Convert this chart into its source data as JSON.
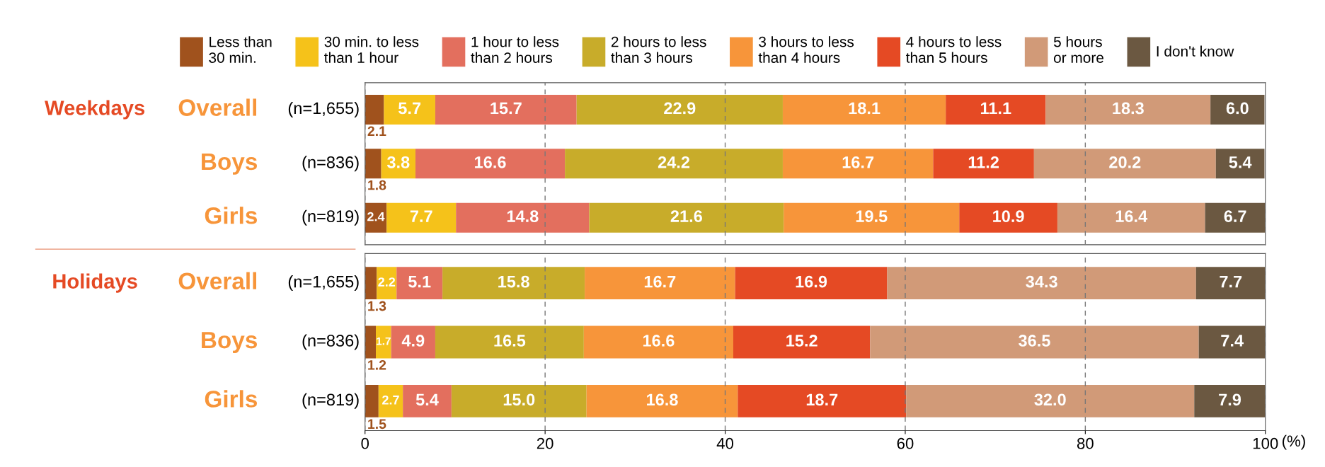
{
  "chart_data": [
    {
      "type": "bar",
      "orientation": "horizontal",
      "stacked": true,
      "categories": [
        "Overall (n=1,655)",
        "Boys (n=836)",
        "Girls (n=819)"
      ],
      "annotations": [
        "Weekdays"
      ],
      "xlim": [
        0,
        100
      ],
      "xticks": [
        0,
        20,
        40,
        60,
        80,
        100
      ],
      "grid": "x",
      "legend": "top",
      "tick_labels": false,
      "series": [
        {
          "name": "Less than\n30 min.",
          "color": "#a0521d",
          "values": [
            2.1,
            1.8,
            2.4
          ],
          "value_labels": [
            "2.1",
            "1.8",
            "2.4"
          ]
        },
        {
          "name": "30 min. to less\nthan 1 hour",
          "color": "#f5c21a",
          "values": [
            5.7,
            3.8,
            7.7
          ],
          "value_labels": [
            "5.7",
            "3.8",
            "7.7"
          ]
        },
        {
          "name": "1 hour to less\nthan 2 hours",
          "color": "#e36f5e",
          "values": [
            15.7,
            16.6,
            14.8
          ],
          "value_labels": [
            "15.7",
            "16.6",
            "14.8"
          ]
        },
        {
          "name": "2 hours to less\nthan 3 hours",
          "color": "#c8ac2a",
          "values": [
            22.9,
            24.2,
            21.6
          ],
          "value_labels": [
            "22.9",
            "24.2",
            "21.6"
          ]
        },
        {
          "name": "3 hours to less\nthan 4 hours",
          "color": "#f7953a",
          "values": [
            18.1,
            16.7,
            19.5
          ],
          "value_labels": [
            "18.1",
            "16.7",
            "19.5"
          ]
        },
        {
          "name": "4 hours to less\nthan 5 hours",
          "color": "#e54a24",
          "values": [
            11.1,
            11.2,
            10.9
          ],
          "value_labels": [
            "11.1",
            "11.2",
            "10.9"
          ]
        },
        {
          "name": "5 hours\nor more",
          "color": "#d19a78",
          "values": [
            18.3,
            20.2,
            16.4
          ],
          "value_labels": [
            "18.3",
            "20.2",
            "16.4"
          ]
        },
        {
          "name": "I don't know",
          "color": "#6b5841",
          "values": [
            6.0,
            5.4,
            6.7
          ],
          "value_labels": [
            "6.0",
            "5.4",
            "6.7"
          ]
        }
      ]
    },
    {
      "type": "bar",
      "orientation": "horizontal",
      "stacked": true,
      "categories": [
        "Overall (n=1,655)",
        "Boys (n=836)",
        "Girls (n=819)"
      ],
      "annotations": [
        "Holidays"
      ],
      "xlim": [
        0,
        100
      ],
      "xticks": [
        0,
        20,
        40,
        60,
        80,
        100
      ],
      "xlabel": "(%)",
      "grid": "x",
      "series": [
        {
          "color": "#a0521d",
          "values": [
            1.3,
            1.2,
            1.5
          ],
          "value_labels": [
            "1.3",
            "1.2",
            "1.5"
          ]
        },
        {
          "color": "#f5c21a",
          "values": [
            2.2,
            1.7,
            2.7
          ],
          "value_labels": [
            "2.2",
            "1.7",
            "2.7"
          ]
        },
        {
          "color": "#e36f5e",
          "values": [
            5.1,
            4.9,
            5.4
          ],
          "value_labels": [
            "5.1",
            "4.9",
            "5.4"
          ]
        },
        {
          "color": "#c8ac2a",
          "values": [
            15.8,
            16.5,
            15.0
          ],
          "value_labels": [
            "15.8",
            "16.5",
            "15.0"
          ]
        },
        {
          "color": "#f7953a",
          "values": [
            16.7,
            16.6,
            16.8
          ],
          "value_labels": [
            "16.7",
            "16.6",
            "16.8"
          ]
        },
        {
          "color": "#e54a24",
          "values": [
            16.9,
            15.2,
            18.7
          ],
          "value_labels": [
            "16.9",
            "15.2",
            "18.7"
          ]
        },
        {
          "color": "#d19a78",
          "values": [
            34.3,
            36.5,
            32.0
          ],
          "value_labels": [
            "34.3",
            "36.5",
            "32.0"
          ]
        },
        {
          "color": "#6b5841",
          "values": [
            7.7,
            7.4,
            7.9
          ],
          "value_labels": [
            "7.7",
            "7.4",
            "7.9"
          ]
        }
      ]
    }
  ]
}
